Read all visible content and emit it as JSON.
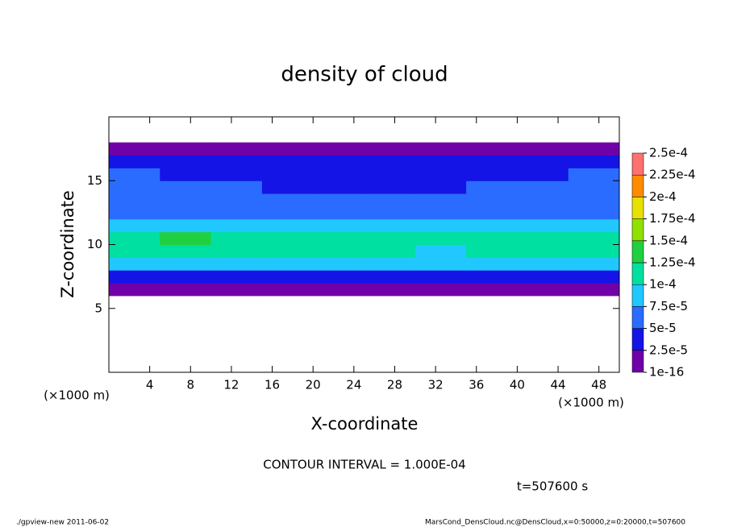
{
  "chart_data": {
    "type": "heatmap",
    "title": "density of cloud",
    "xlabel": "X-coordinate",
    "ylabel": "Z-coordinate",
    "x_unit": "(×1000 m)",
    "y_unit": "(×1000 m)",
    "xlim": [
      0,
      50
    ],
    "ylim": [
      0,
      20
    ],
    "xticks": [
      4,
      8,
      12,
      16,
      20,
      24,
      28,
      32,
      36,
      40,
      44,
      48
    ],
    "yticks": [
      5,
      10,
      15
    ],
    "x": [
      2.5,
      7.5,
      12.5,
      17.5,
      22.5,
      27.5,
      32.5,
      37.5,
      42.5,
      47.5
    ],
    "z": [
      6.5,
      7.5,
      8.5,
      9.5,
      10.5,
      11.5,
      12.5,
      13.5,
      14.5,
      15.5,
      16.5,
      17.5
    ],
    "values": [
      [
        1e-05,
        1e-05,
        1e-05,
        1e-05,
        1e-05,
        1e-05,
        1e-05,
        1e-05,
        1e-05,
        1e-05
      ],
      [
        3e-05,
        4e-05,
        3e-05,
        4e-05,
        3e-05,
        4e-05,
        3e-05,
        3e-05,
        4e-05,
        3e-05
      ],
      [
        8e-05,
        8.5e-05,
        7.8e-05,
        8e-05,
        8.2e-05,
        8e-05,
        7.6e-05,
        8e-05,
        8.3e-05,
        8e-05
      ],
      [
        0.00011,
        0.00012,
        0.000105,
        0.000102,
        0.000108,
        0.00011,
        9.5e-05,
        0.000105,
        0.00011,
        0.000105
      ],
      [
        0.000115,
        0.00013,
        0.00011,
        0.000105,
        0.00011,
        0.000112,
        0.0001,
        0.000108,
        0.000112,
        0.00011
      ],
      [
        9e-05,
        9.5e-05,
        8.5e-05,
        8.8e-05,
        9e-05,
        9.2e-05,
        8e-05,
        9e-05,
        9.5e-05,
        9e-05
      ],
      [
        7e-05,
        6.5e-05,
        6.8e-05,
        7e-05,
        6.6e-05,
        6.8e-05,
        6.2e-05,
        6.5e-05,
        6.8e-05,
        7e-05
      ],
      [
        6e-05,
        5.8e-05,
        6e-05,
        5.5e-05,
        5.6e-05,
        5.8e-05,
        5.2e-05,
        5.5e-05,
        5.8e-05,
        6e-05
      ],
      [
        5.5e-05,
        5.2e-05,
        5e-05,
        4.8e-05,
        4.9e-05,
        4.6e-05,
        4.8e-05,
        5e-05,
        5.2e-05,
        5.4e-05
      ],
      [
        5e-05,
        4.5e-05,
        4.4e-05,
        4.6e-05,
        4.2e-05,
        4.5e-05,
        4.3e-05,
        4.6e-05,
        4.8e-05,
        5e-05
      ],
      [
        3e-05,
        3e-05,
        2.8e-05,
        3e-05,
        2.8e-05,
        3e-05,
        2.8e-05,
        3e-05,
        3e-05,
        3e-05
      ],
      [
        1e-05,
        1e-05,
        1e-05,
        1e-05,
        1e-05,
        1e-05,
        1e-05,
        1e-05,
        1e-05,
        1e-05
      ]
    ],
    "colorbar": {
      "ticks": [
        1e-16,
        {
          "value": 2.5e-05,
          "label": "2.5e-5"
        },
        {
          "value": 5e-05,
          "label": "5e-5"
        },
        {
          "value": 7.5e-05,
          "label": "7.5e-5"
        },
        {
          "value": 0.0001,
          "label": "1e-4"
        },
        {
          "value": 0.000125,
          "label": "1.25e-4"
        },
        {
          "value": 0.00015,
          "label": "1.5e-4"
        },
        {
          "value": 0.000175,
          "label": "1.75e-4"
        },
        {
          "value": 0.0002,
          "label": "2e-4"
        },
        {
          "value": 0.000225,
          "label": "2.25e-4"
        },
        {
          "value": 0.00025,
          "label": "2.5e-4"
        }
      ],
      "colors": [
        "#7000a8",
        "#1414e6",
        "#2a6cff",
        "#20c8ff",
        "#00e0a0",
        "#20d040",
        "#90e000",
        "#e8e000",
        "#ff8c00",
        "#ff7070"
      ]
    },
    "annotations": [
      "CONTOUR INTERVAL = 1.000E-04",
      "t=507600 s"
    ],
    "footer_left": "./gpview-new  2011-06-02",
    "footer_right": "MarsCond_DensCloud.nc@DensCloud,x=0:50000,z=0:20000,t=507600"
  }
}
